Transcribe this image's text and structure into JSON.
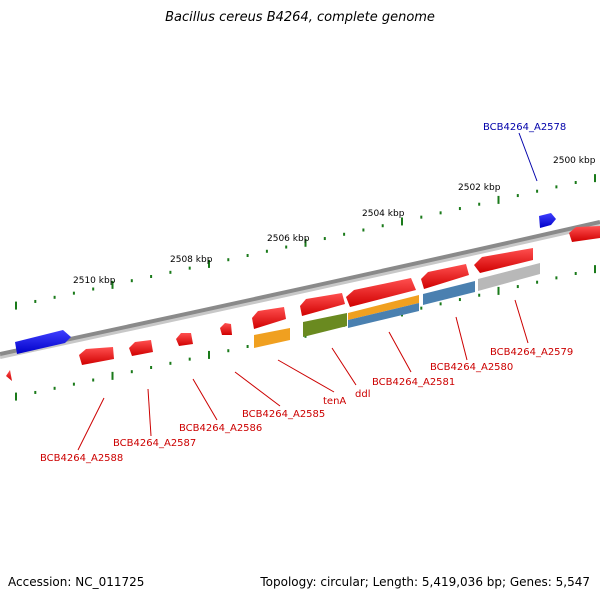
{
  "title": "Bacillus cereus B4264, complete genome",
  "accession": "Accession: NC_011725",
  "topology": "Topology: circular; Length: 5,419,036 bp; Genes: 5,547",
  "colors": {
    "backbone": "#8a8a8a",
    "forward_gene": "#1010ee",
    "reverse_gene": "#ee1010",
    "label_forward": "#0000aa",
    "label_reverse": "#cc0000",
    "tick": "#1a7a1a",
    "cog_orange": "#f0a020",
    "cog_olive": "#6a8a20",
    "cog_steel": "#4a80b0",
    "cog_gray": "#b8b8b8"
  },
  "scale_labels": [
    "2500 kbp",
    "2502 kbp",
    "2504 kbp",
    "2506 kbp",
    "2508 kbp",
    "2510 kbp"
  ],
  "gene_labels": [
    {
      "text": "BCB4264_A2578",
      "strand": "forward"
    },
    {
      "text": "BCB4264_A2579",
      "strand": "reverse"
    },
    {
      "text": "BCB4264_A2580",
      "strand": "reverse"
    },
    {
      "text": "BCB4264_A2581",
      "strand": "reverse"
    },
    {
      "text": "ddl",
      "strand": "reverse"
    },
    {
      "text": "tenA",
      "strand": "reverse"
    },
    {
      "text": "BCB4264_A2585",
      "strand": "reverse"
    },
    {
      "text": "BCB4264_A2586",
      "strand": "reverse"
    },
    {
      "text": "BCB4264_A2587",
      "strand": "reverse"
    },
    {
      "text": "BCB4264_A2588",
      "strand": "reverse"
    }
  ]
}
